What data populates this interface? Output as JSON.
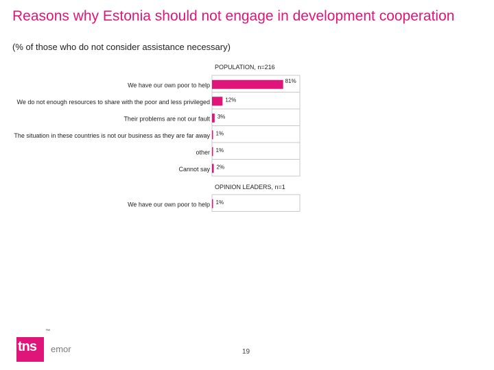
{
  "title": "Reasons why Estonia should not engage in development cooperation",
  "subtitle": "(% of those who do not consider assistance necessary)",
  "slide_number": "19",
  "logo": {
    "text": "tns",
    "suffix": "emor",
    "trademark": "™"
  },
  "colors": {
    "accent": "#e0157a",
    "frame": "#c8c8c8"
  },
  "chart_data": [
    {
      "type": "bar",
      "orientation": "horizontal",
      "title": "POPULATION, n=216",
      "categories": [
        "We have our own poor to help",
        "We do not enough resources to share with the poor and less privileged",
        "Their problems are not our fault",
        "The situation in these countries is not our business as they are far away",
        "other",
        "Cannot say"
      ],
      "values": [
        81,
        12,
        3,
        1,
        1,
        2
      ],
      "value_labels": [
        "81%",
        "12%",
        "3%",
        "1%",
        "1%",
        "2%"
      ],
      "xlim": [
        0,
        100
      ]
    },
    {
      "type": "bar",
      "orientation": "horizontal",
      "title": "OPINION LEADERS, n=1",
      "categories": [
        "We have our own poor to help"
      ],
      "values": [
        1
      ],
      "value_labels": [
        "1%"
      ],
      "xlim": [
        0,
        100
      ]
    }
  ]
}
